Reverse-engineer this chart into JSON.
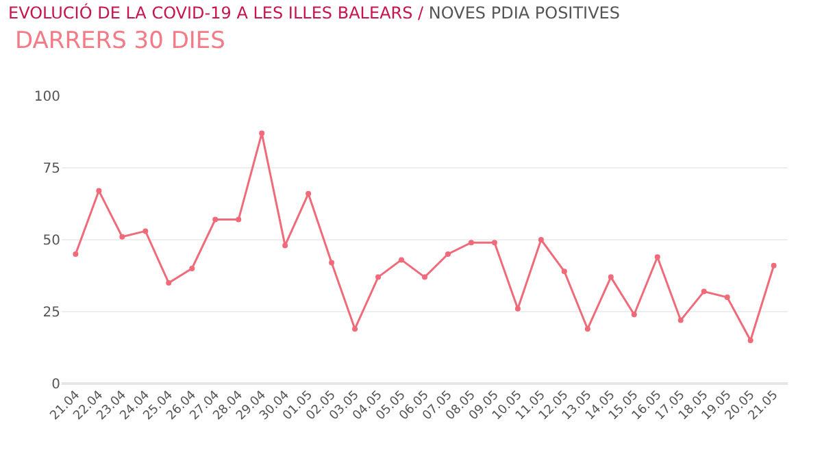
{
  "chart_data": {
    "type": "line",
    "title": "EVOLUCIÓ DE LA COVID-19 A LES ILLES BALEARS / NOVES PDIA POSITIVES",
    "subtitle": "DARRERS 30 DIES",
    "categories": [
      "21.04",
      "22.04",
      "23.04",
      "24.04",
      "25.04",
      "26.04",
      "27.04",
      "28.04",
      "29.04",
      "30.04",
      "01.05",
      "02.05",
      "03.05",
      "04.05",
      "05.05",
      "06.05",
      "07.05",
      "08.05",
      "09.05",
      "10.05",
      "11.05",
      "12.05",
      "13.05",
      "14.05",
      "15.05",
      "16.05",
      "17.05",
      "18.05",
      "19.05",
      "20.05",
      "21.05"
    ],
    "series": [
      {
        "color": "#f06a7a",
        "values": [
          45,
          67,
          51,
          53,
          35,
          40,
          57,
          57,
          87,
          48,
          66,
          42,
          19,
          37,
          43,
          37,
          45,
          49,
          49,
          26,
          50,
          39,
          19,
          37,
          24,
          44,
          22,
          32,
          30,
          15,
          41
        ]
      }
    ],
    "ylim": [
      0,
      100
    ],
    "yticks": [
      0,
      25,
      50,
      75,
      100
    ],
    "grid": "y",
    "marker": "circle",
    "line_style": "solid",
    "legend": false
  }
}
